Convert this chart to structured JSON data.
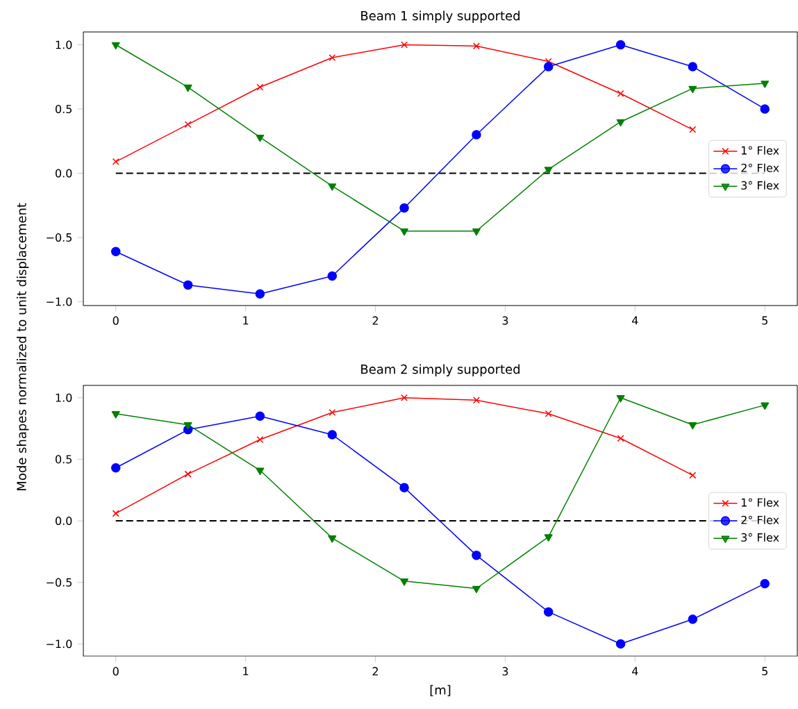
{
  "chart_data": [
    {
      "type": "line",
      "title": "Beam 1 simply supported",
      "ylabel": "Mode shapes normalized to unit displacement",
      "x": [
        0,
        0.556,
        1.111,
        1.667,
        2.222,
        2.778,
        3.333,
        3.889,
        4.444,
        5
      ],
      "xlim": [
        -0.25,
        5.25
      ],
      "ylim": [
        -1.03,
        1.1
      ],
      "xticks": [
        0,
        1,
        2,
        3,
        4,
        5
      ],
      "yticks": [
        {
          "value": -1,
          "label": "−1.0"
        },
        {
          "value": -0.5,
          "label": "−0.5"
        },
        {
          "value": 0,
          "label": "0.0"
        },
        {
          "value": 0.5,
          "label": "0.5"
        },
        {
          "value": 1,
          "label": "1.0"
        }
      ],
      "legend": "right",
      "ref_lines": [
        {
          "axis": "y",
          "value": 0,
          "color": "#000000",
          "line_style": "dashed"
        }
      ],
      "series": [
        {
          "name": "1° Flex",
          "color": "#ff0000",
          "marker": "cross",
          "values": [
            0.09,
            0.38,
            0.67,
            0.9,
            1.0,
            0.99,
            0.87,
            0.62,
            0.34,
            null
          ]
        },
        {
          "name": "2° Flex",
          "color": "#0000ff",
          "marker": "circle",
          "values": [
            -0.61,
            -0.87,
            -0.94,
            -0.8,
            -0.27,
            0.3,
            0.83,
            1.0,
            0.83,
            0.5
          ]
        },
        {
          "name": "3° Flex",
          "color": "#008000",
          "marker": "triangle",
          "values": [
            1.0,
            0.67,
            0.28,
            -0.1,
            -0.45,
            -0.45,
            0.03,
            0.4,
            0.66,
            0.7
          ]
        }
      ]
    },
    {
      "type": "line",
      "title": "Beam 2 simply supported",
      "xlabel": "[m]",
      "x": [
        0,
        0.556,
        1.111,
        1.667,
        2.222,
        2.778,
        3.333,
        3.889,
        4.444,
        5
      ],
      "xlim": [
        -0.25,
        5.25
      ],
      "ylim": [
        -1.1,
        1.1
      ],
      "xticks": [
        0,
        1,
        2,
        3,
        4,
        5
      ],
      "yticks": [
        {
          "value": -1,
          "label": "−1.0"
        },
        {
          "value": -0.5,
          "label": "−0.5"
        },
        {
          "value": 0,
          "label": "0.0"
        },
        {
          "value": 0.5,
          "label": "0.5"
        },
        {
          "value": 1,
          "label": "1.0"
        }
      ],
      "legend": "right",
      "ref_lines": [
        {
          "axis": "y",
          "value": 0,
          "color": "#000000",
          "line_style": "dashed"
        }
      ],
      "series": [
        {
          "name": "1° Flex",
          "color": "#ff0000",
          "marker": "cross",
          "values": [
            0.06,
            0.38,
            0.66,
            0.88,
            1.0,
            0.98,
            0.87,
            0.67,
            0.37,
            null
          ]
        },
        {
          "name": "2° Flex",
          "color": "#0000ff",
          "marker": "circle",
          "values": [
            0.43,
            0.74,
            0.85,
            0.7,
            0.27,
            -0.28,
            -0.74,
            -1.0,
            -0.8,
            -0.51
          ]
        },
        {
          "name": "3° Flex",
          "color": "#008000",
          "marker": "triangle",
          "values": [
            0.87,
            0.78,
            0.41,
            -0.14,
            -0.49,
            -0.55,
            -0.13,
            1.0,
            0.78,
            0.94
          ]
        }
      ]
    }
  ]
}
